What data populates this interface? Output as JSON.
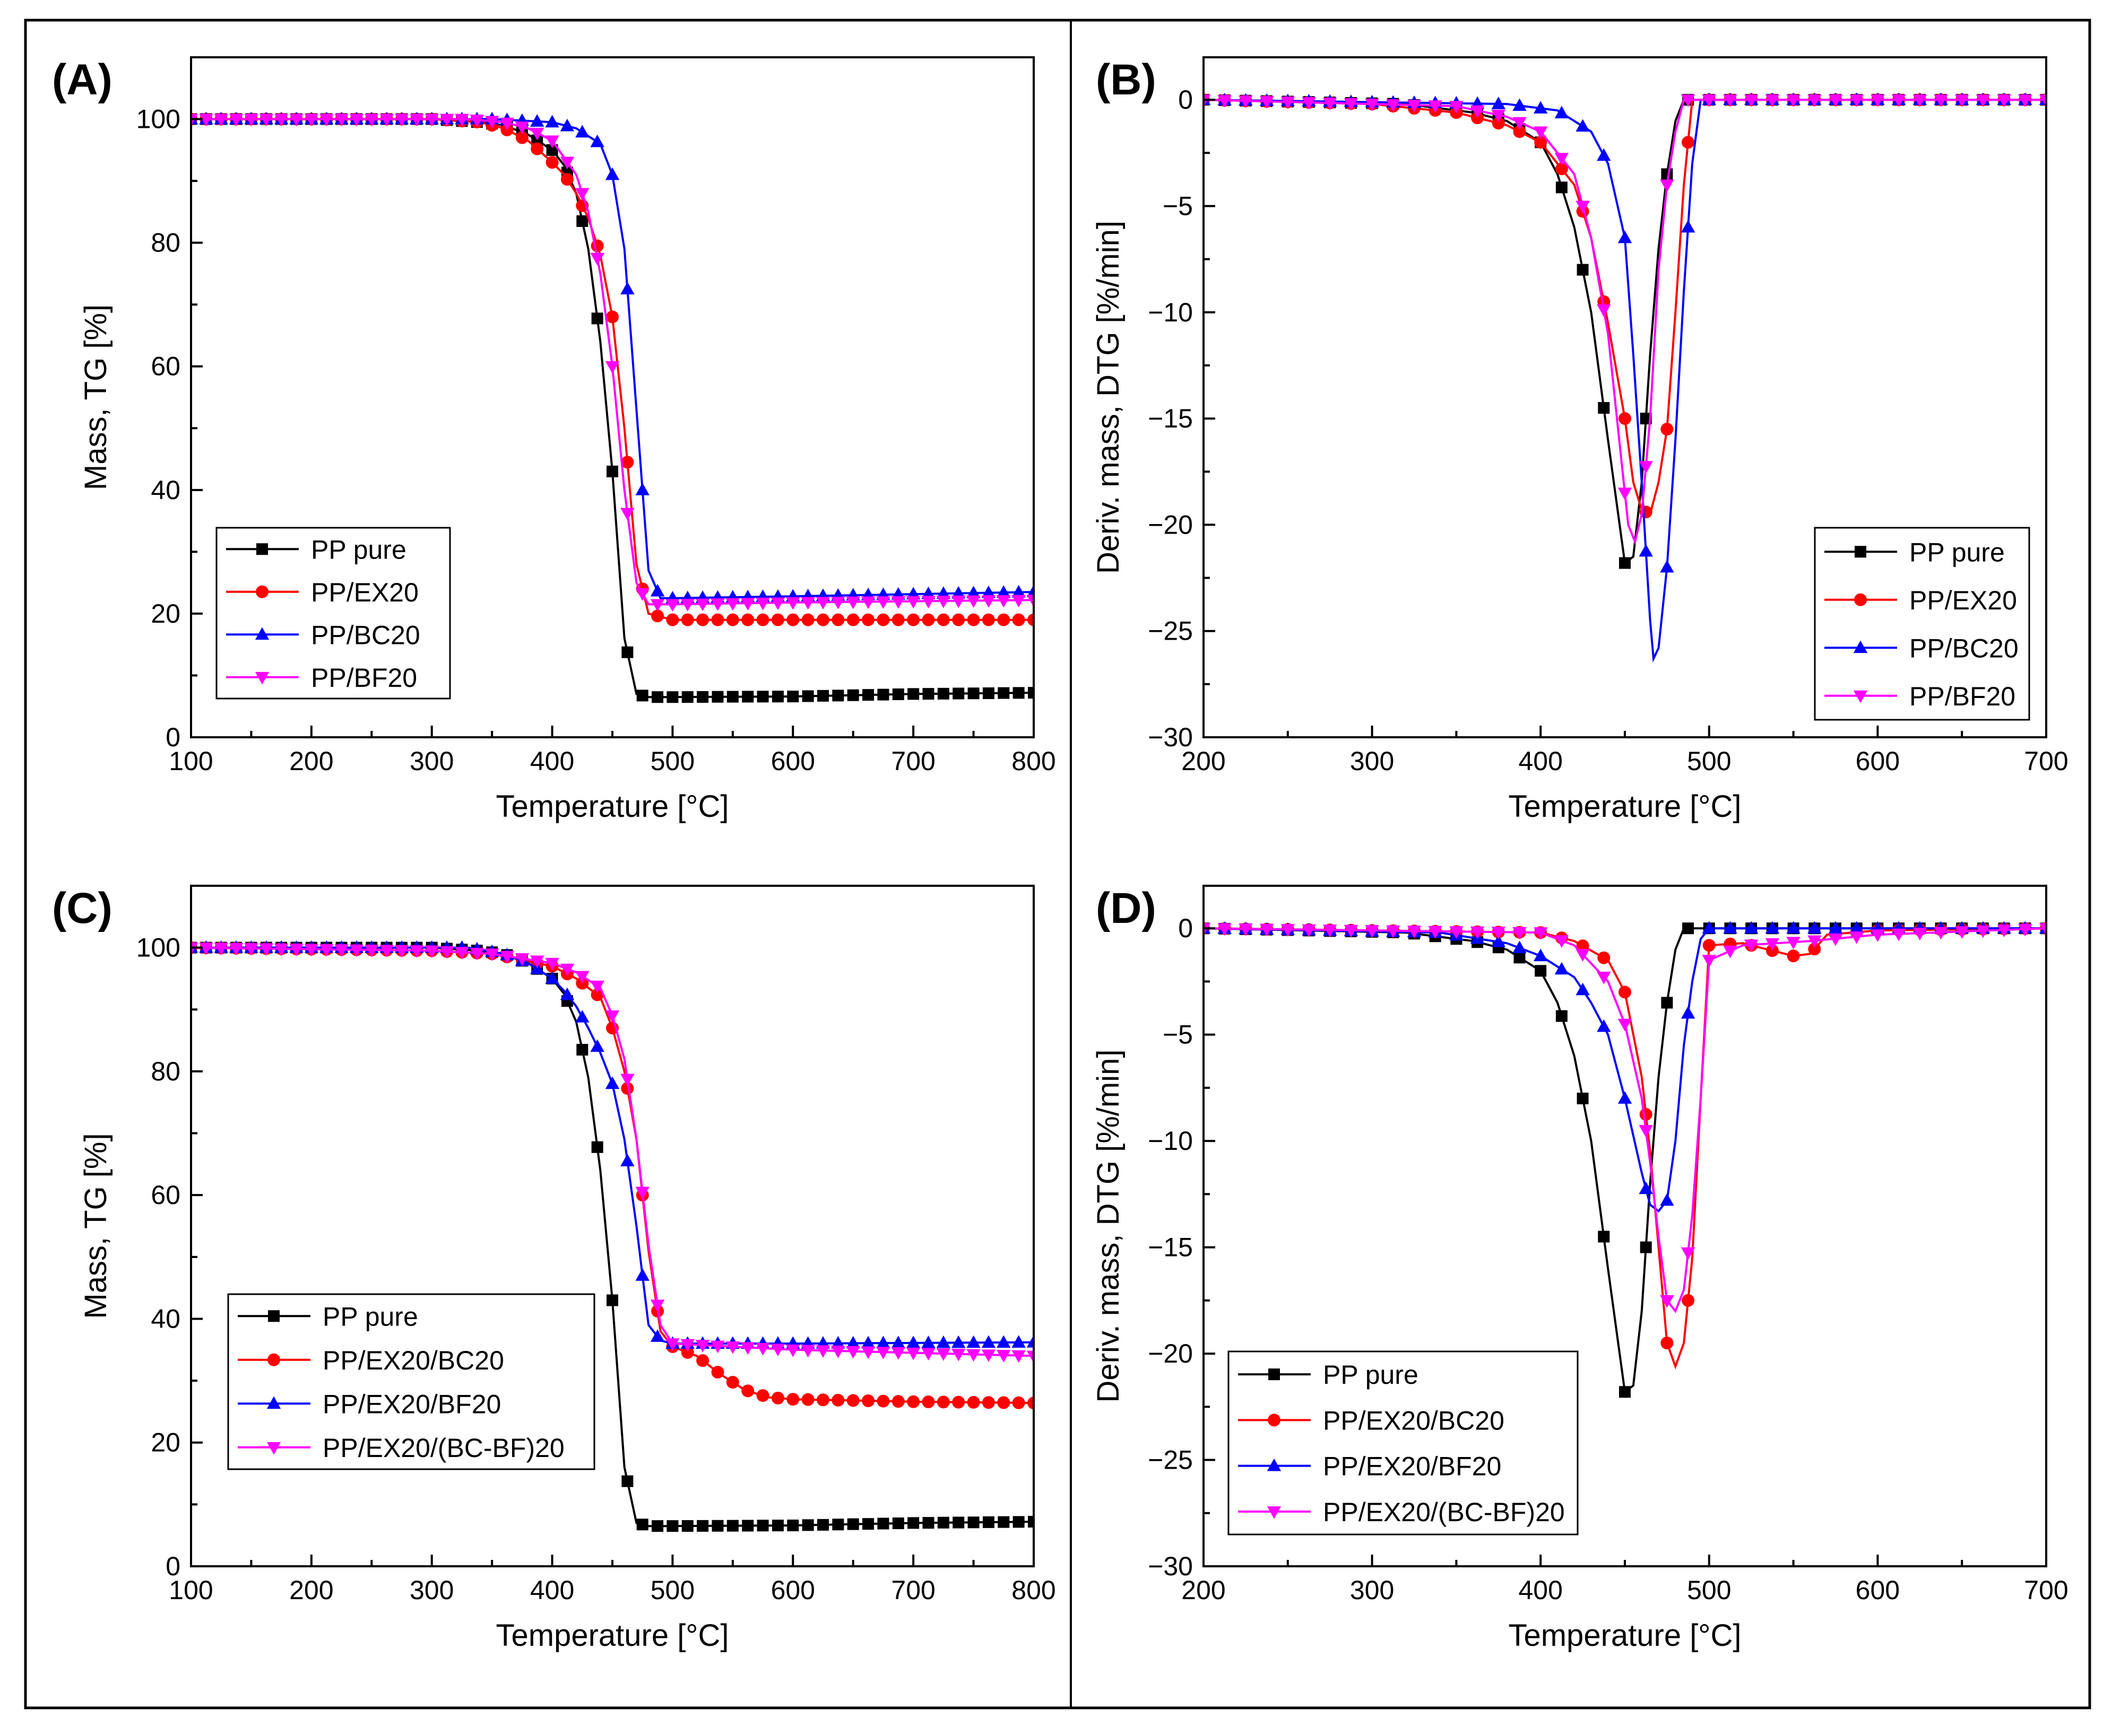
{
  "figure": {
    "panels": [
      "A",
      "B",
      "C",
      "D"
    ]
  },
  "colors": {
    "black": "#000000",
    "red": "#ff0000",
    "blue": "#0000ff",
    "magenta": "#ff00ff"
  },
  "chart_data": [
    {
      "id": "A",
      "panel_label": "(A)",
      "type": "line",
      "xlabel": "Temperature [°C]",
      "ylabel": "Mass, TG [%]",
      "xlim": [
        100,
        800
      ],
      "ylim": [
        0,
        110
      ],
      "xticks": [
        100,
        200,
        300,
        400,
        500,
        600,
        700,
        800
      ],
      "yticks": [
        0,
        20,
        40,
        60,
        80,
        100
      ],
      "legend_position": "bottom-left",
      "series": [
        {
          "name": "PP pure",
          "color": "#000000",
          "marker": "square",
          "x": [
            100,
            300,
            340,
            360,
            380,
            400,
            410,
            420,
            430,
            440,
            450,
            460,
            470,
            480,
            500,
            600,
            700,
            800
          ],
          "y": [
            100,
            100,
            99.5,
            99,
            97.5,
            95,
            92.5,
            88,
            79,
            64,
            43,
            16,
            7,
            6.5,
            6.5,
            6.6,
            7,
            7.2
          ]
        },
        {
          "name": "PP/EX20",
          "color": "#ff0000",
          "marker": "circle",
          "x": [
            100,
            300,
            340,
            360,
            380,
            400,
            410,
            420,
            430,
            440,
            450,
            460,
            470,
            480,
            500,
            600,
            800
          ],
          "y": [
            100,
            100,
            99.5,
            98.5,
            96.5,
            93,
            91,
            88,
            84,
            78,
            68,
            50,
            28,
            20,
            19,
            19,
            19
          ]
        },
        {
          "name": "PP/BC20",
          "color": "#0000ff",
          "marker": "triangle-up",
          "x": [
            100,
            350,
            400,
            420,
            440,
            450,
            460,
            470,
            480,
            490,
            500,
            600,
            800
          ],
          "y": [
            100,
            100,
            99.5,
            98.5,
            96,
            91,
            79,
            53,
            27,
            22.5,
            22.5,
            22.8,
            23.5
          ]
        },
        {
          "name": "PP/BF20",
          "color": "#ff00ff",
          "marker": "triangle-down",
          "x": [
            100,
            330,
            360,
            380,
            400,
            420,
            430,
            440,
            450,
            460,
            470,
            480,
            500,
            600,
            800
          ],
          "y": [
            100,
            100,
            99.5,
            98.5,
            96.5,
            91,
            85,
            75,
            60,
            40,
            25,
            21.5,
            21.5,
            21.8,
            22.2
          ]
        }
      ]
    },
    {
      "id": "B",
      "panel_label": "(B)",
      "type": "line",
      "xlabel": "Temperature [°C]",
      "ylabel": "Deriv. mass, DTG [%/min]",
      "xlim": [
        200,
        700
      ],
      "ylim": [
        -30,
        2
      ],
      "xticks": [
        200,
        300,
        400,
        500,
        600,
        700
      ],
      "yticks": [
        -30,
        -25,
        -20,
        -15,
        -10,
        -5,
        0
      ],
      "legend_position": "bottom-right",
      "series": [
        {
          "name": "PP pure",
          "color": "#000000",
          "marker": "square",
          "x": [
            200,
            320,
            360,
            380,
            400,
            410,
            420,
            430,
            440,
            450,
            455,
            460,
            465,
            470,
            475,
            480,
            485,
            700
          ],
          "y": [
            0,
            -0.2,
            -0.6,
            -1,
            -2,
            -3.5,
            -6,
            -10,
            -16,
            -21.8,
            -21.5,
            -18,
            -12,
            -7,
            -3.5,
            -1,
            0,
            0
          ]
        },
        {
          "name": "PP/EX20",
          "color": "#ff0000",
          "marker": "circle",
          "x": [
            200,
            300,
            350,
            380,
            400,
            420,
            430,
            440,
            450,
            455,
            460,
            465,
            470,
            475,
            480,
            485,
            490,
            700
          ],
          "y": [
            0,
            -0.2,
            -0.6,
            -1.2,
            -2,
            -4,
            -6.5,
            -10.5,
            -15,
            -18,
            -19.3,
            -19.5,
            -18,
            -15.5,
            -10,
            -4,
            0,
            0
          ]
        },
        {
          "name": "PP/BC20",
          "color": "#0000ff",
          "marker": "triangle-up",
          "x": [
            200,
            380,
            410,
            430,
            440,
            450,
            455,
            460,
            465,
            467,
            470,
            475,
            480,
            485,
            490,
            495,
            700
          ],
          "y": [
            0,
            -0.2,
            -0.5,
            -1.5,
            -3,
            -6.5,
            -12,
            -18,
            -24.5,
            -26.3,
            -25.8,
            -22,
            -16,
            -9,
            -3,
            0,
            0
          ]
        },
        {
          "name": "PP/BF20",
          "color": "#ff00ff",
          "marker": "triangle-down",
          "x": [
            200,
            350,
            380,
            400,
            420,
            430,
            440,
            448,
            452,
            456,
            460,
            465,
            470,
            475,
            480,
            485,
            700
          ],
          "y": [
            0,
            -0.3,
            -0.8,
            -1.5,
            -3.5,
            -6.5,
            -11,
            -17,
            -20,
            -20.8,
            -19.5,
            -15,
            -8,
            -4,
            -1.5,
            0,
            0
          ]
        }
      ]
    },
    {
      "id": "C",
      "panel_label": "(C)",
      "type": "line",
      "xlabel": "Temperature [°C]",
      "ylabel": "Mass, TG [%]",
      "xlim": [
        100,
        800
      ],
      "ylim": [
        0,
        110
      ],
      "xticks": [
        100,
        200,
        300,
        400,
        500,
        600,
        700,
        800
      ],
      "yticks": [
        0,
        20,
        40,
        60,
        80,
        100
      ],
      "legend_position": "bottom-left",
      "series": [
        {
          "name": "PP pure",
          "color": "#000000",
          "marker": "square",
          "x": [
            100,
            300,
            340,
            360,
            380,
            400,
            410,
            420,
            430,
            440,
            450,
            460,
            470,
            480,
            500,
            600,
            700,
            800
          ],
          "y": [
            100,
            100,
            99.5,
            99,
            97.5,
            95,
            92.5,
            88,
            79,
            64,
            43,
            16,
            7,
            6.5,
            6.5,
            6.6,
            7,
            7.2
          ]
        },
        {
          "name": "PP/EX20/BC20",
          "color": "#ff0000",
          "marker": "circle",
          "x": [
            100,
            300,
            350,
            400,
            420,
            440,
            450,
            460,
            470,
            480,
            490,
            500,
            520,
            540,
            560,
            580,
            600,
            700,
            800
          ],
          "y": [
            100,
            99.5,
            99,
            97,
            95,
            92,
            87,
            80,
            69,
            51,
            38,
            35.5,
            34,
            31,
            28.5,
            27.3,
            27,
            26.6,
            26.4
          ]
        },
        {
          "name": "PP/EX20/BF20",
          "color": "#0000ff",
          "marker": "triangle-up",
          "x": [
            100,
            330,
            360,
            380,
            400,
            410,
            420,
            430,
            440,
            450,
            460,
            470,
            480,
            490,
            500,
            600,
            800
          ],
          "y": [
            100,
            100,
            99,
            97.5,
            95,
            93,
            90.5,
            87,
            83,
            78,
            69,
            55,
            39,
            36.5,
            36,
            36,
            36.2
          ]
        },
        {
          "name": "PP/EX20/(BC-BF)20",
          "color": "#ff00ff",
          "marker": "triangle-down",
          "x": [
            100,
            300,
            350,
            400,
            420,
            440,
            450,
            460,
            470,
            480,
            490,
            500,
            600,
            800
          ],
          "y": [
            100,
            99.5,
            99,
            97.5,
            96,
            93.5,
            89,
            82,
            69,
            52,
            39,
            36,
            35,
            34
          ]
        }
      ]
    },
    {
      "id": "D",
      "panel_label": "(D)",
      "type": "line",
      "xlabel": "Temperature [°C]",
      "ylabel": "Deriv. mass, DTG [%/min]",
      "xlim": [
        200,
        700
      ],
      "ylim": [
        -30,
        2
      ],
      "xticks": [
        200,
        300,
        400,
        500,
        600,
        700
      ],
      "yticks": [
        -30,
        -25,
        -20,
        -15,
        -10,
        -5,
        0
      ],
      "legend_position": "bottom-left",
      "series": [
        {
          "name": "PP pure",
          "color": "#000000",
          "marker": "square",
          "x": [
            200,
            320,
            360,
            380,
            400,
            410,
            420,
            430,
            440,
            450,
            455,
            460,
            465,
            470,
            475,
            480,
            485,
            700
          ],
          "y": [
            0,
            -0.2,
            -0.6,
            -1,
            -2,
            -3.5,
            -6,
            -10,
            -16,
            -21.8,
            -21.5,
            -18,
            -12,
            -7,
            -3.5,
            -1,
            0,
            0
          ]
        },
        {
          "name": "PP/EX20/BC20",
          "color": "#ff0000",
          "marker": "circle",
          "x": [
            200,
            400,
            420,
            440,
            450,
            460,
            465,
            470,
            475,
            480,
            485,
            490,
            495,
            500,
            520,
            540,
            550,
            560,
            570,
            600,
            700
          ],
          "y": [
            0,
            -0.2,
            -0.6,
            -1.5,
            -3,
            -7,
            -10.5,
            -15,
            -19.5,
            -20.6,
            -19.5,
            -15.5,
            -8,
            -0.8,
            -0.7,
            -1.1,
            -1.3,
            -1.2,
            -0.3,
            -0.1,
            0
          ]
        },
        {
          "name": "PP/EX20/BF20",
          "color": "#0000ff",
          "marker": "triangle-up",
          "x": [
            200,
            340,
            380,
            400,
            420,
            430,
            440,
            450,
            460,
            465,
            470,
            475,
            480,
            485,
            490,
            495,
            500,
            700
          ],
          "y": [
            0,
            -0.2,
            -0.7,
            -1.3,
            -2.3,
            -3.5,
            -5,
            -8,
            -11.5,
            -13,
            -13.3,
            -12.8,
            -10,
            -5.5,
            -2.5,
            -0.5,
            0,
            0
          ]
        },
        {
          "name": "PP/EX20/(BC-BF)20",
          "color": "#ff00ff",
          "marker": "triangle-down",
          "x": [
            200,
            400,
            420,
            440,
            450,
            460,
            465,
            470,
            475,
            480,
            485,
            490,
            495,
            500,
            520,
            560,
            600,
            700
          ],
          "y": [
            0,
            -0.2,
            -0.8,
            -2.5,
            -4.5,
            -8,
            -11,
            -14.5,
            -17.5,
            -18,
            -17,
            -13.5,
            -8,
            -1.5,
            -0.8,
            -0.6,
            -0.3,
            0
          ]
        }
      ]
    }
  ]
}
